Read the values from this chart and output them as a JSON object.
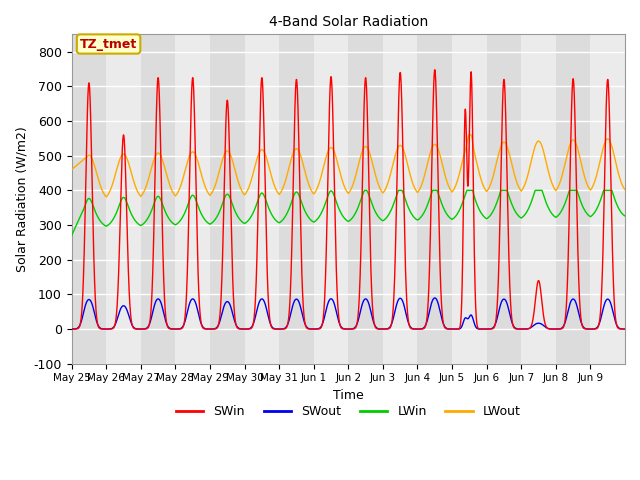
{
  "title": "4-Band Solar Radiation",
  "xlabel": "Time",
  "ylabel": "Solar Radiation (W/m2)",
  "ylim": [
    -100,
    850
  ],
  "yticks": [
    -100,
    0,
    100,
    200,
    300,
    400,
    500,
    600,
    700,
    800
  ],
  "date_labels": [
    "May 25",
    "May 26",
    "May 27",
    "May 28",
    "May 29",
    "May 30",
    "May 31",
    "Jun 1",
    "Jun 2",
    "Jun 3",
    "Jun 4",
    "Jun 5",
    "Jun 6",
    "Jun 7",
    "Jun 8",
    "Jun 9"
  ],
  "annotation_text": "TZ_tmet",
  "annotation_bg": "#ffffcc",
  "annotation_border": "#ccaa00",
  "annotation_text_color": "#bb0000",
  "colors": {
    "SWin": "#ff0000",
    "SWout": "#0000ee",
    "LWin": "#00cc00",
    "LWout": "#ffaa00"
  },
  "legend_labels": [
    "SWin",
    "SWout",
    "LWin",
    "LWout"
  ],
  "stripe_dark": "#dcdcdc",
  "stripe_light": "#ebebeb",
  "n_days": 16,
  "points_per_day": 240
}
